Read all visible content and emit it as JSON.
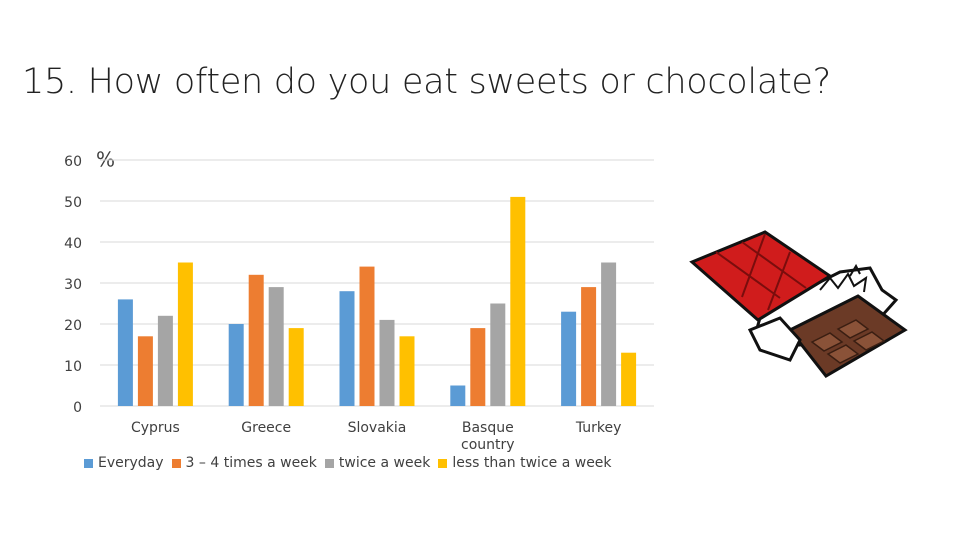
{
  "chart_data": {
    "type": "bar",
    "title": "15. How often do you eat sweets or chocolate?",
    "y_label": "%",
    "categories": [
      "Cyprus",
      "Greece",
      "Slovakia",
      "Basque country",
      "Turkey"
    ],
    "series": [
      {
        "name": "Everyday",
        "color": "#5b9bd5",
        "values": [
          26,
          20,
          28,
          5,
          23
        ]
      },
      {
        "name": "3 – 4 times a week",
        "color": "#ed7d31",
        "values": [
          17,
          32,
          34,
          19,
          29
        ]
      },
      {
        "name": "twice a week",
        "color": "#a5a5a5",
        "values": [
          22,
          29,
          21,
          25,
          35
        ]
      },
      {
        "name": "less than twice a week",
        "color": "#ffc000",
        "values": [
          35,
          19,
          17,
          51,
          13
        ]
      }
    ],
    "ylim": [
      0,
      60
    ],
    "yticks": [
      0,
      10,
      20,
      30,
      40,
      50,
      60
    ],
    "grid": true
  }
}
